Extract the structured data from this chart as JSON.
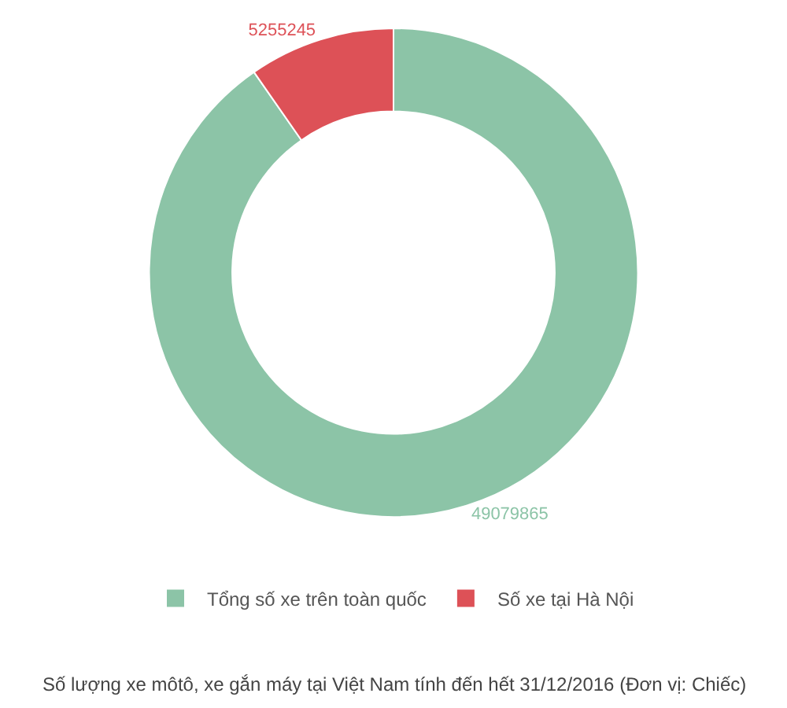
{
  "chart_data": {
    "type": "donut",
    "categories": [
      "Tổng số xe trên toàn quốc",
      "Số xe tại Hà Nội"
    ],
    "values": [
      49079865,
      5255245
    ],
    "colors": [
      "#8cc4a7",
      "#dd5157"
    ],
    "data_labels": true,
    "legend": "bottom",
    "annotations": [
      "Số lượng xe môtô, xe gắn máy tại Việt Nam tính đến hết 31/12/2016 (Đơn vị: Chiếc)"
    ]
  }
}
